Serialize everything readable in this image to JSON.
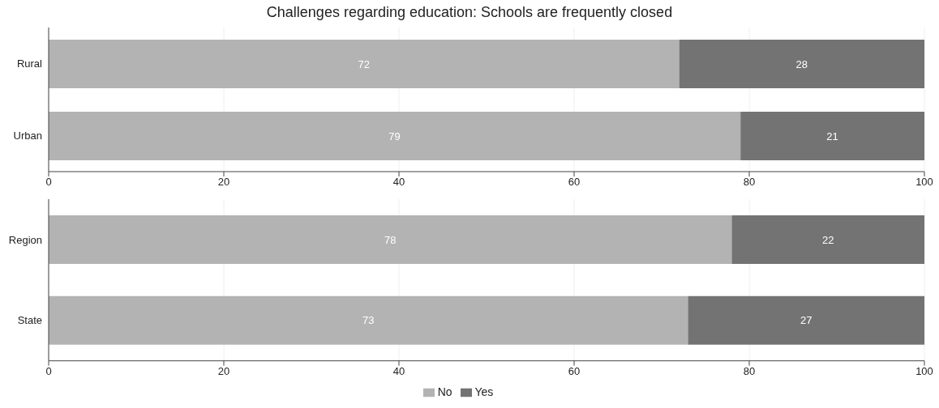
{
  "chart_data": [
    {
      "type": "bar",
      "title": "Challenges regarding education: Schools are frequently closed",
      "orientation": "horizontal",
      "stacked": true,
      "categories": [
        "Rural",
        "Urban"
      ],
      "series": [
        {
          "color": "#b3b3b3",
          "values": [
            72,
            79
          ]
        },
        {
          "color": "#737373",
          "values": [
            28,
            21
          ]
        }
      ],
      "xlim": [
        0,
        100
      ],
      "xticks": [
        0,
        20,
        40,
        60,
        80,
        100
      ],
      "grid": "x",
      "data_labels": true,
      "legend": false
    },
    {
      "type": "bar",
      "orientation": "horizontal",
      "stacked": true,
      "categories": [
        "Region",
        "State"
      ],
      "series": [
        {
          "name": "No",
          "color": "#b3b3b3",
          "values": [
            78,
            73
          ]
        },
        {
          "name": "Yes",
          "color": "#737373",
          "values": [
            22,
            27
          ]
        }
      ],
      "xlim": [
        0,
        100
      ],
      "xticks": [
        0,
        20,
        40,
        60,
        80,
        100
      ],
      "grid": "x",
      "data_labels": true,
      "legend": "bottom"
    }
  ]
}
